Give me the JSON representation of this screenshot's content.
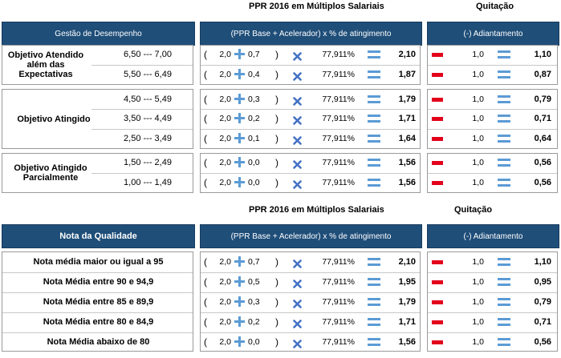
{
  "section1": {
    "title_ppr": "PPR 2016 em Múltiplos Salariais",
    "title_quitacao": "Quitação",
    "header_left": "Gestão de Desempenho",
    "header_mid": "(PPR Base + Acelerador) x % de atingimento",
    "header_right": "(-) Adiantamento",
    "groups": [
      {
        "label": "Objetivo Atendido além das Expectativas",
        "rows": [
          {
            "range": "6,50 --- 7,00",
            "base": "2,0",
            "acel": "0,7",
            "pct": "77,911%",
            "result": "2,10",
            "adiant": "1,0",
            "quit": "1,10"
          },
          {
            "range": "5,50 --- 6,49",
            "base": "2,0",
            "acel": "0,4",
            "pct": "77,911%",
            "result": "1,87",
            "adiant": "1,0",
            "quit": "0,87"
          }
        ]
      },
      {
        "label": "Objetivo Atingido",
        "rows": [
          {
            "range": "4,50 --- 5,49",
            "base": "2,0",
            "acel": "0,3",
            "pct": "77,911%",
            "result": "1,79",
            "adiant": "1,0",
            "quit": "0,79"
          },
          {
            "range": "3,50 --- 4,49",
            "base": "2,0",
            "acel": "0,2",
            "pct": "77,911%",
            "result": "1,71",
            "adiant": "1,0",
            "quit": "0,71"
          },
          {
            "range": "2,50 --- 3,49",
            "base": "2,0",
            "acel": "0,1",
            "pct": "77,911%",
            "result": "1,64",
            "adiant": "1,0",
            "quit": "0,64"
          }
        ]
      },
      {
        "label": "Objetivo Atingido Parcialmente",
        "rows": [
          {
            "range": "1,50 --- 2,49",
            "base": "2,0",
            "acel": "0,0",
            "pct": "77,911%",
            "result": "1,56",
            "adiant": "1,0",
            "quit": "0,56"
          },
          {
            "range": "1,00 --- 1,49",
            "base": "2,0",
            "acel": "0,0",
            "pct": "77,911%",
            "result": "1,56",
            "adiant": "1,0",
            "quit": "0,56"
          }
        ]
      }
    ]
  },
  "section2": {
    "title_ppr": "PPR 2016 em Múltiplos Salariais",
    "title_quitacao": "Quitação",
    "header_left": "Nota da Qualidade",
    "header_mid": "(PPR Base + Acelerador) x % de atingimento",
    "header_right": "(-) Adiantamento",
    "rows": [
      {
        "label": "Nota média maior ou igual a 95",
        "base": "2,0",
        "acel": "0,7",
        "pct": "77,911%",
        "result": "2,10",
        "adiant": "1,0",
        "quit": "1,10"
      },
      {
        "label": "Nota Média entre 90 e 94,9",
        "base": "2,0",
        "acel": "0,5",
        "pct": "77,911%",
        "result": "1,95",
        "adiant": "1,0",
        "quit": "0,95"
      },
      {
        "label": "Nota Média entre 85 e 89,9",
        "base": "2,0",
        "acel": "0,3",
        "pct": "77,911%",
        "result": "1,79",
        "adiant": "1,0",
        "quit": "0,79"
      },
      {
        "label": "Nota Média entre 80 e 84,9",
        "base": "2,0",
        "acel": "0,2",
        "pct": "77,911%",
        "result": "1,71",
        "adiant": "1,0",
        "quit": "0,71"
      },
      {
        "label": "Nota Média abaixo de 80",
        "base": "2,0",
        "acel": "0,0",
        "pct": "77,911%",
        "result": "1,56",
        "adiant": "1,0",
        "quit": "0,56"
      }
    ]
  },
  "symbols": {
    "open_paren": "(",
    "close_paren": ")"
  },
  "colors": {
    "header_bg": "#1f4e79",
    "plus": "#5b9bd5",
    "times": "#4472c4",
    "equals": "#5b9bd5",
    "minus": "#e3001b"
  }
}
